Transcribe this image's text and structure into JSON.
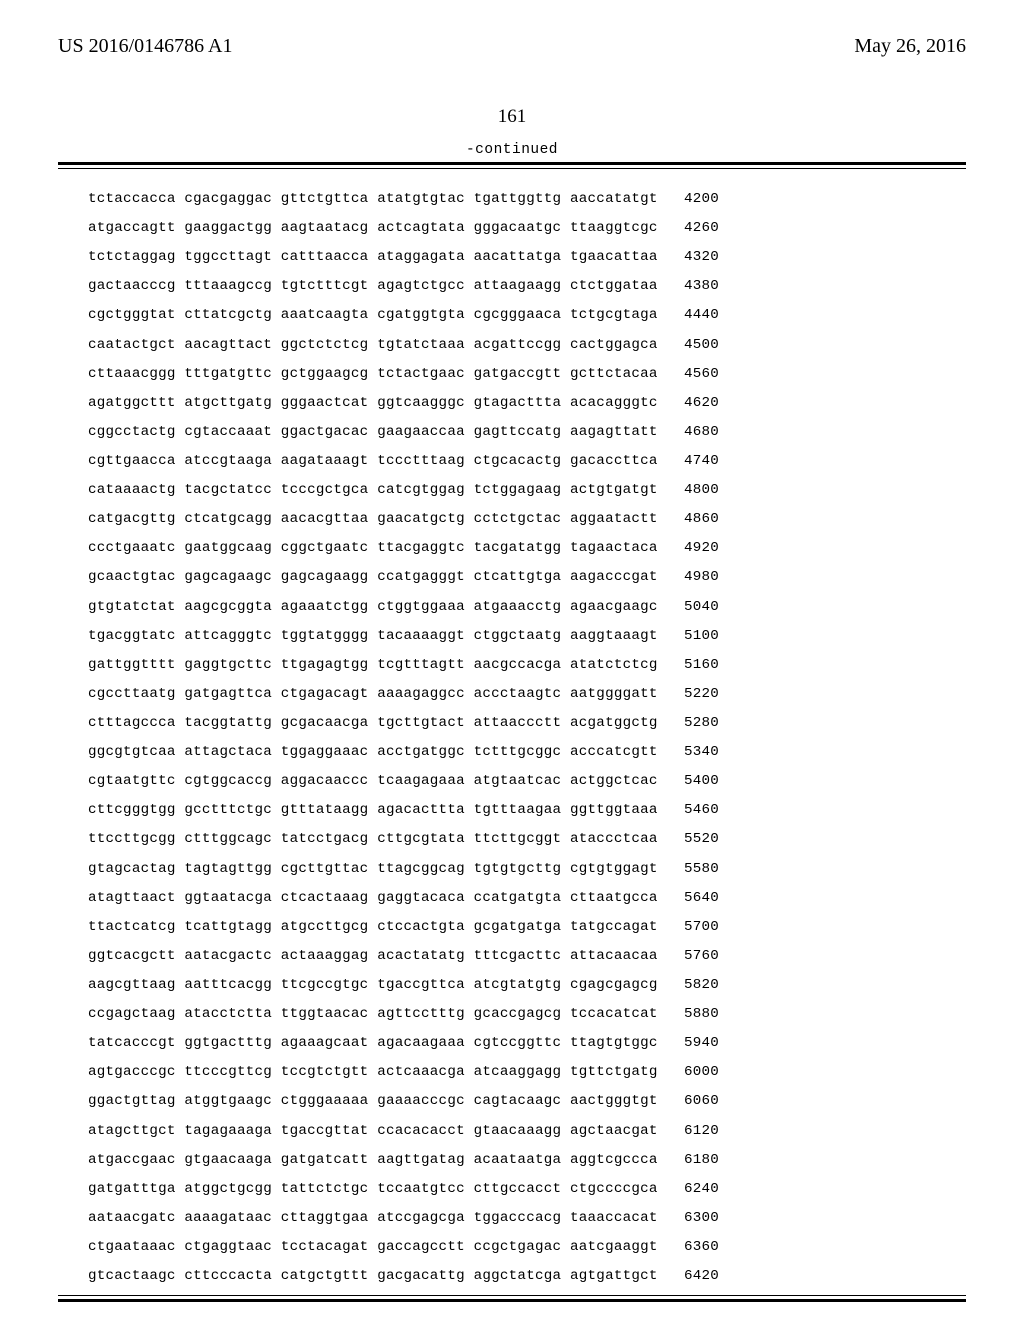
{
  "header": {
    "left": "US 2016/0146786 A1",
    "right": "May 26, 2016"
  },
  "page_number": "161",
  "continued_label": "-continued",
  "sequence": {
    "font": "Courier New",
    "fontsize_pt": 11,
    "text_color": "#000000",
    "background_color": "#ffffff",
    "rule_color": "#000000",
    "rows": [
      {
        "groups": [
          "tctaccacca",
          "cgacgaggac",
          "gttctgttca",
          "atatgtgtac",
          "tgattggttg",
          "aaccatatgt"
        ],
        "pos": "4200"
      },
      {
        "groups": [
          "atgaccagtt",
          "gaaggactgg",
          "aagtaatacg",
          "actcagtata",
          "gggacaatgc",
          "ttaaggtcgc"
        ],
        "pos": "4260"
      },
      {
        "groups": [
          "tctctaggag",
          "tggccttagt",
          "catttaacca",
          "ataggagata",
          "aacattatga",
          "tgaacattaa"
        ],
        "pos": "4320"
      },
      {
        "groups": [
          "gactaacccg",
          "tttaaagccg",
          "tgtctttcgt",
          "agagtctgcc",
          "attaagaagg",
          "ctctggataa"
        ],
        "pos": "4380"
      },
      {
        "groups": [
          "cgctgggtat",
          "cttatcgctg",
          "aaatcaagta",
          "cgatggtgta",
          "cgcgggaaca",
          "tctgcgtaga"
        ],
        "pos": "4440"
      },
      {
        "groups": [
          "caatactgct",
          "aacagttact",
          "ggctctctcg",
          "tgtatctaaa",
          "acgattccgg",
          "cactggagca"
        ],
        "pos": "4500"
      },
      {
        "groups": [
          "cttaaacggg",
          "tttgatgttc",
          "gctggaagcg",
          "tctactgaac",
          "gatgaccgtt",
          "gcttctacaa"
        ],
        "pos": "4560"
      },
      {
        "groups": [
          "agatggcttt",
          "atgcttgatg",
          "gggaactcat",
          "ggtcaagggc",
          "gtagacttta",
          "acacagggtc"
        ],
        "pos": "4620"
      },
      {
        "groups": [
          "cggcctactg",
          "cgtaccaaat",
          "ggactgacac",
          "gaagaaccaa",
          "gagttccatg",
          "aagagttatt"
        ],
        "pos": "4680"
      },
      {
        "groups": [
          "cgttgaacca",
          "atccgtaaga",
          "aagataaagt",
          "tccctttaag",
          "ctgcacactg",
          "gacaccttca"
        ],
        "pos": "4740"
      },
      {
        "groups": [
          "cataaaactg",
          "tacgctatcc",
          "tcccgctgca",
          "catcgtggag",
          "tctggagaag",
          "actgtgatgt"
        ],
        "pos": "4800"
      },
      {
        "groups": [
          "catgacgttg",
          "ctcatgcagg",
          "aacacgttaa",
          "gaacatgctg",
          "cctctgctac",
          "aggaatactt"
        ],
        "pos": "4860"
      },
      {
        "groups": [
          "ccctgaaatc",
          "gaatggcaag",
          "cggctgaatc",
          "ttacgaggtc",
          "tacgatatgg",
          "tagaactaca"
        ],
        "pos": "4920"
      },
      {
        "groups": [
          "gcaactgtac",
          "gagcagaagc",
          "gagcagaagg",
          "ccatgagggt",
          "ctcattgtga",
          "aagacccgat"
        ],
        "pos": "4980"
      },
      {
        "groups": [
          "gtgtatctat",
          "aagcgcggta",
          "agaaatctgg",
          "ctggtggaaa",
          "atgaaacctg",
          "agaacgaagc"
        ],
        "pos": "5040"
      },
      {
        "groups": [
          "tgacggtatc",
          "attcagggtc",
          "tggtatgggg",
          "tacaaaaggt",
          "ctggctaatg",
          "aaggtaaagt"
        ],
        "pos": "5100"
      },
      {
        "groups": [
          "gattggtttt",
          "gaggtgcttc",
          "ttgagagtgg",
          "tcgtttagtt",
          "aacgccacga",
          "atatctctcg"
        ],
        "pos": "5160"
      },
      {
        "groups": [
          "cgccttaatg",
          "gatgagttca",
          "ctgagacagt",
          "aaaagaggcc",
          "accctaagtc",
          "aatggggatt"
        ],
        "pos": "5220"
      },
      {
        "groups": [
          "ctttagccca",
          "tacggtattg",
          "gcgacaacga",
          "tgcttgtact",
          "attaaccctt",
          "acgatggctg"
        ],
        "pos": "5280"
      },
      {
        "groups": [
          "ggcgtgtcaa",
          "attagctaca",
          "tggaggaaac",
          "acctgatggc",
          "tctttgcggc",
          "acccatcgtt"
        ],
        "pos": "5340"
      },
      {
        "groups": [
          "cgtaatgttc",
          "cgtggcaccg",
          "aggacaaccc",
          "tcaagagaaa",
          "atgtaatcac",
          "actggctcac"
        ],
        "pos": "5400"
      },
      {
        "groups": [
          "cttcgggtgg",
          "gcctttctgc",
          "gtttataagg",
          "agacacttta",
          "tgtttaagaa",
          "ggttggtaaa"
        ],
        "pos": "5460"
      },
      {
        "groups": [
          "ttccttgcgg",
          "ctttggcagc",
          "tatcctgacg",
          "cttgcgtata",
          "ttcttgcggt",
          "ataccctcaa"
        ],
        "pos": "5520"
      },
      {
        "groups": [
          "gtagcactag",
          "tagtagttgg",
          "cgcttgttac",
          "ttagcggcag",
          "tgtgtgcttg",
          "cgtgtggagt"
        ],
        "pos": "5580"
      },
      {
        "groups": [
          "atagttaact",
          "ggtaatacga",
          "ctcactaaag",
          "gaggtacaca",
          "ccatgatgta",
          "cttaatgcca"
        ],
        "pos": "5640"
      },
      {
        "groups": [
          "ttactcatcg",
          "tcattgtagg",
          "atgccttgcg",
          "ctccactgta",
          "gcgatgatga",
          "tatgccagat"
        ],
        "pos": "5700"
      },
      {
        "groups": [
          "ggtcacgctt",
          "aatacgactc",
          "actaaaggag",
          "acactatatg",
          "tttcgacttc",
          "attacaacaa"
        ],
        "pos": "5760"
      },
      {
        "groups": [
          "aagcgttaag",
          "aatttcacgg",
          "ttcgccgtgc",
          "tgaccgttca",
          "atcgtatgtg",
          "cgagcgagcg"
        ],
        "pos": "5820"
      },
      {
        "groups": [
          "ccgagctaag",
          "atacctctta",
          "ttggtaacac",
          "agttcctttg",
          "gcaccgagcg",
          "tccacatcat"
        ],
        "pos": "5880"
      },
      {
        "groups": [
          "tatcacccgt",
          "ggtgactttg",
          "agaaagcaat",
          "agacaagaaa",
          "cgtccggttc",
          "ttagtgtggc"
        ],
        "pos": "5940"
      },
      {
        "groups": [
          "agtgacccgc",
          "ttcccgttcg",
          "tccgtctgtt",
          "actcaaacga",
          "atcaaggagg",
          "tgttctgatg"
        ],
        "pos": "6000"
      },
      {
        "groups": [
          "ggactgttag",
          "atggtgaagc",
          "ctgggaaaaa",
          "gaaaacccgc",
          "cagtacaagc",
          "aactgggtgt"
        ],
        "pos": "6060"
      },
      {
        "groups": [
          "atagcttgct",
          "tagagaaaga",
          "tgaccgttat",
          "ccacacacct",
          "gtaacaaagg",
          "agctaacgat"
        ],
        "pos": "6120"
      },
      {
        "groups": [
          "atgaccgaac",
          "gtgaacaaga",
          "gatgatcatt",
          "aagttgatag",
          "acaataatga",
          "aggtcgccca"
        ],
        "pos": "6180"
      },
      {
        "groups": [
          "gatgatttga",
          "atggctgcgg",
          "tattctctgc",
          "tccaatgtcc",
          "cttgccacct",
          "ctgccccgca"
        ],
        "pos": "6240"
      },
      {
        "groups": [
          "aataacgatc",
          "aaaagataac",
          "cttaggtgaa",
          "atccgagcga",
          "tggacccacg",
          "taaaccacat"
        ],
        "pos": "6300"
      },
      {
        "groups": [
          "ctgaataaac",
          "ctgaggtaac",
          "tcctacagat",
          "gaccagcctt",
          "ccgctgagac",
          "aatcgaaggt"
        ],
        "pos": "6360"
      },
      {
        "groups": [
          "gtcactaagc",
          "cttcccacta",
          "catgctgttt",
          "gacgacattg",
          "aggctatcga",
          "agtgattgct"
        ],
        "pos": "6420"
      }
    ]
  }
}
